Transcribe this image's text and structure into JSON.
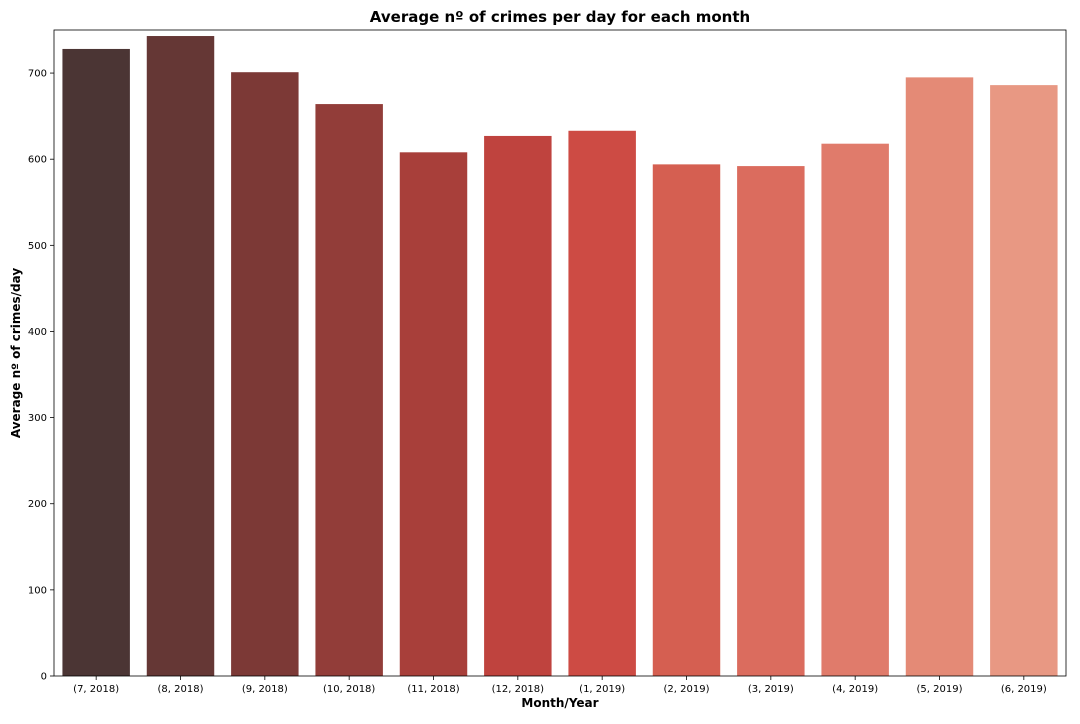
{
  "chart_data": {
    "type": "bar",
    "title": "Average nº of crimes per day for each month",
    "xlabel": "Month/Year",
    "ylabel": "Average nº of crimes/day",
    "categories": [
      "(7, 2018)",
      "(8, 2018)",
      "(9, 2018)",
      "(10, 2018)",
      "(11, 2018)",
      "(12, 2018)",
      "(1, 2019)",
      "(2, 2019)",
      "(3, 2019)",
      "(4, 2019)",
      "(5, 2019)",
      "(6, 2019)"
    ],
    "values": [
      728,
      743,
      701,
      664,
      608,
      627,
      633,
      594,
      592,
      618,
      695,
      686
    ],
    "colors": [
      "#4b3534",
      "#653735",
      "#7c3936",
      "#923d39",
      "#a83f3a",
      "#bf433e",
      "#cd4b44",
      "#d55f51",
      "#db6c5e",
      "#e07b6b",
      "#e48a76",
      "#e89883"
    ],
    "ylim": [
      0,
      750
    ],
    "yticks": [
      0,
      100,
      200,
      300,
      400,
      500,
      600,
      700
    ],
    "grid": false,
    "legend": "none"
  }
}
